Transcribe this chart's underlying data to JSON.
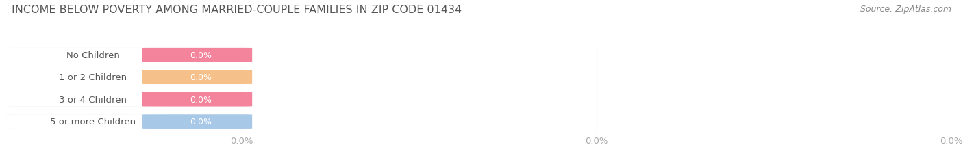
{
  "title": "INCOME BELOW POVERTY AMONG MARRIED-COUPLE FAMILIES IN ZIP CODE 01434",
  "source": "Source: ZipAtlas.com",
  "categories": [
    "No Children",
    "1 or 2 Children",
    "3 or 4 Children",
    "5 or more Children"
  ],
  "values": [
    0.0,
    0.0,
    0.0,
    0.0
  ],
  "bar_colors": [
    "#f4849c",
    "#f5c08a",
    "#f4849c",
    "#a8c8e8"
  ],
  "bar_bg_color": "#e8e8e8",
  "bar_white_color": "#ffffff",
  "background_color": "#ffffff",
  "grid_color": "#dddddd",
  "title_fontsize": 11.5,
  "label_fontsize": 9.5,
  "value_fontsize": 9,
  "source_fontsize": 9,
  "bar_height": 0.62,
  "bar_label_color": "#ffffff",
  "category_label_color": "#555555",
  "tick_label_color": "#aaaaaa",
  "title_color": "#555555",
  "source_color": "#888888",
  "colored_portion": 0.38,
  "total_bar_width": 0.245,
  "xlim_max": 1.0,
  "xtick_positions": [
    0.245,
    0.6225,
    1.0
  ],
  "xtick_labels": [
    "0.0%",
    "0.0%",
    "0.0%"
  ]
}
